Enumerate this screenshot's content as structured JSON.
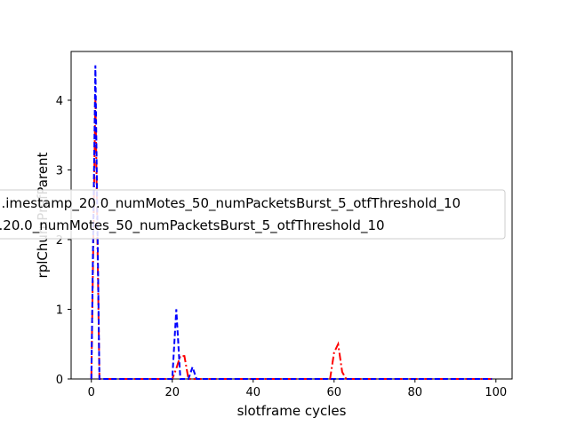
{
  "chart_data": {
    "type": "line",
    "xlabel": "slotframe cycles",
    "ylabel": "rplChurnPrefParent",
    "xlim": [
      -5,
      104
    ],
    "ylim": [
      0,
      4.7
    ],
    "xticks": [
      0,
      20,
      40,
      60,
      80,
      100
    ],
    "yticks": [
      0,
      1,
      2,
      3,
      4
    ],
    "legend_position": "center-left",
    "series": [
      {
        "name": "...imestamp_20.0_numMotes_50_numPacketsBurst_5_otfThreshold_10",
        "color": "#ff0000",
        "style": "dash-dot",
        "points": [
          [
            0,
            0
          ],
          [
            1,
            4.05
          ],
          [
            2,
            0
          ],
          [
            20,
            0
          ],
          [
            21,
            0.15
          ],
          [
            22,
            0.33
          ],
          [
            23,
            0.33
          ],
          [
            24,
            0
          ],
          [
            59,
            0
          ],
          [
            60,
            0.38
          ],
          [
            61,
            0.5
          ],
          [
            62,
            0.1
          ],
          [
            63,
            0
          ],
          [
            99,
            0
          ]
        ]
      },
      {
        "name": "...20.0_numMotes_50_numPacketsBurst_5_otfThreshold_10",
        "color": "#0000ff",
        "style": "dashed",
        "points": [
          [
            0,
            0
          ],
          [
            1,
            4.5
          ],
          [
            2,
            0
          ],
          [
            20,
            0
          ],
          [
            21,
            1.0
          ],
          [
            22,
            0
          ],
          [
            24,
            0
          ],
          [
            25,
            0.17
          ],
          [
            26,
            0
          ],
          [
            99,
            0
          ]
        ]
      }
    ]
  }
}
